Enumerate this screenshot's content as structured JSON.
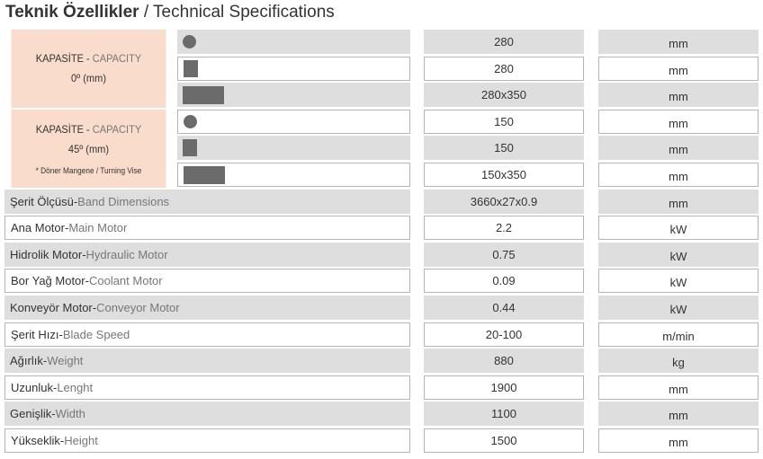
{
  "title": {
    "tr": "Teknik Özellikler",
    "en": "/ Technical Specifications"
  },
  "separator": "-",
  "capacity": [
    {
      "label_tr": "KAPASİTE",
      "label_en": "CAPACITY",
      "angle": "0º (mm)",
      "rows": [
        {
          "value": 280,
          "unit": "mm"
        },
        {
          "value": 280,
          "unit": "mm"
        },
        {
          "value": "280x350",
          "unit": "mm"
        }
      ]
    },
    {
      "label_tr": "KAPASİTE",
      "label_en": "CAPACITY",
      "angle": "45º (mm)",
      "note": "* Döner Mangene / Turning Vise",
      "rows": [
        {
          "value": 150,
          "unit": "mm"
        },
        {
          "value": 150,
          "unit": "mm"
        },
        {
          "value": "150x350",
          "unit": "mm"
        }
      ]
    }
  ],
  "specs": [
    {
      "tr": "Şerit Ölçüsü",
      "en": "Band Dimensions",
      "value": "3660x27x0.9",
      "unit": "mm"
    },
    {
      "tr": "Ana Motor",
      "en": "Main Motor",
      "value": 2.2,
      "unit": "kW"
    },
    {
      "tr": "Hidrolik Motor",
      "en": "Hydraulic Motor",
      "value": 0.75,
      "unit": "kW"
    },
    {
      "tr": "Bor Yağ Motor",
      "en": "Coolant Motor",
      "value": 0.09,
      "unit": "kW"
    },
    {
      "tr": "Konveyör Motor",
      "en": "Conveyor Motor",
      "value": 0.44,
      "unit": "kW"
    },
    {
      "tr": "Şerit Hızı",
      "en": "Blade Speed",
      "value": "20-100",
      "unit": "m/min"
    },
    {
      "tr": "Ağırlık",
      "en": "Weight",
      "value": 880,
      "unit": "kg"
    },
    {
      "tr": "Uzunluk",
      "en": "Lenght",
      "value": 1900,
      "unit": "mm"
    },
    {
      "tr": "Genişlik",
      "en": "Width",
      "value": 1100,
      "unit": "mm"
    },
    {
      "tr": "Yükseklik",
      "en": "Height",
      "value": 1500,
      "unit": "mm"
    }
  ]
}
